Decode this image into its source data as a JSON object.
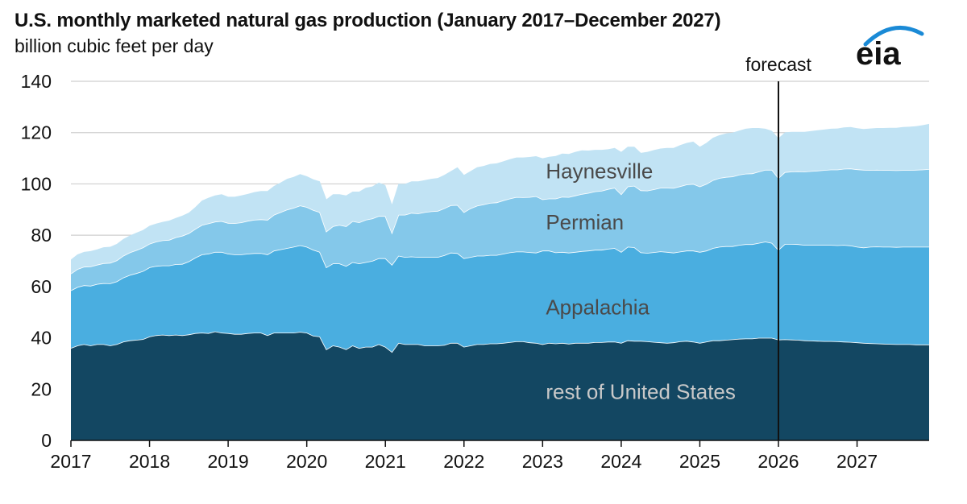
{
  "title": "U.S. monthly marketed natural gas production (January 2017–December 2027)",
  "subtitle": "billion cubic feet per day",
  "logo_text": "eia",
  "colors": {
    "rest": "#134762",
    "appalachia": "#4aaee0",
    "permian": "#84c8ea",
    "haynesville": "#c1e3f4",
    "logo": "#1a8ad6"
  },
  "chart_data": {
    "type": "area",
    "stacked": true,
    "ylabel": "billion cubic feet per day",
    "ylim": [
      0,
      140
    ],
    "yticks": [
      0,
      20,
      40,
      60,
      80,
      100,
      120,
      140
    ],
    "xlim": [
      "2017-01",
      "2027-12"
    ],
    "xticks": [
      "2017",
      "2018",
      "2019",
      "2020",
      "2021",
      "2022",
      "2023",
      "2024",
      "2025",
      "2026",
      "2027"
    ],
    "grid": "horizontal",
    "forecast_start": "2026-01",
    "forecast_label": "forecast",
    "x": [
      "2017-01",
      "2017-02",
      "2017-03",
      "2017-04",
      "2017-05",
      "2017-06",
      "2017-07",
      "2017-08",
      "2017-09",
      "2017-10",
      "2017-11",
      "2017-12",
      "2018-01",
      "2018-02",
      "2018-03",
      "2018-04",
      "2018-05",
      "2018-06",
      "2018-07",
      "2018-08",
      "2018-09",
      "2018-10",
      "2018-11",
      "2018-12",
      "2019-01",
      "2019-02",
      "2019-03",
      "2019-04",
      "2019-05",
      "2019-06",
      "2019-07",
      "2019-08",
      "2019-09",
      "2019-10",
      "2019-11",
      "2019-12",
      "2020-01",
      "2020-02",
      "2020-03",
      "2020-04",
      "2020-05",
      "2020-06",
      "2020-07",
      "2020-08",
      "2020-09",
      "2020-10",
      "2020-11",
      "2020-12",
      "2021-01",
      "2021-02",
      "2021-03",
      "2021-04",
      "2021-05",
      "2021-06",
      "2021-07",
      "2021-08",
      "2021-09",
      "2021-10",
      "2021-11",
      "2021-12",
      "2022-01",
      "2022-02",
      "2022-03",
      "2022-04",
      "2022-05",
      "2022-06",
      "2022-07",
      "2022-08",
      "2022-09",
      "2022-10",
      "2022-11",
      "2022-12",
      "2023-01",
      "2023-02",
      "2023-03",
      "2023-04",
      "2023-05",
      "2023-06",
      "2023-07",
      "2023-08",
      "2023-09",
      "2023-10",
      "2023-11",
      "2023-12",
      "2024-01",
      "2024-02",
      "2024-03",
      "2024-04",
      "2024-05",
      "2024-06",
      "2024-07",
      "2024-08",
      "2024-09",
      "2024-10",
      "2024-11",
      "2024-12",
      "2025-01",
      "2025-02",
      "2025-03",
      "2025-04",
      "2025-05",
      "2025-06",
      "2025-07",
      "2025-08",
      "2025-09",
      "2025-10",
      "2025-11",
      "2025-12",
      "2026-01",
      "2026-02",
      "2026-03",
      "2026-04",
      "2026-05",
      "2026-06",
      "2026-07",
      "2026-08",
      "2026-09",
      "2026-10",
      "2026-11",
      "2026-12",
      "2027-01",
      "2027-02",
      "2027-03",
      "2027-04",
      "2027-05",
      "2027-06",
      "2027-07",
      "2027-08",
      "2027-09",
      "2027-10",
      "2027-11",
      "2027-12"
    ],
    "series": [
      {
        "name": "rest of United States",
        "key": "rest",
        "values": [
          36.0,
          37.0,
          37.5,
          37.0,
          37.5,
          37.5,
          37.0,
          37.5,
          38.5,
          39.0,
          39.2,
          39.5,
          40.5,
          41.0,
          41.2,
          41.0,
          41.2,
          41.0,
          41.3,
          41.8,
          42.0,
          41.8,
          42.5,
          42.0,
          41.8,
          41.5,
          41.5,
          41.8,
          42.0,
          42.0,
          41.0,
          42.0,
          42.0,
          42.0,
          42.0,
          42.3,
          42.0,
          40.8,
          40.5,
          35.5,
          37.0,
          36.5,
          35.5,
          37.0,
          36.0,
          36.5,
          36.5,
          37.5,
          36.5,
          34.5,
          38.0,
          37.5,
          37.5,
          37.5,
          37.0,
          37.0,
          37.0,
          37.2,
          38.0,
          38.0,
          36.5,
          37.0,
          37.5,
          37.5,
          37.8,
          37.8,
          38.0,
          38.3,
          38.6,
          38.6,
          38.2,
          38.0,
          37.5,
          38.0,
          37.8,
          38.0,
          37.7,
          38.0,
          38.0,
          38.0,
          38.3,
          38.3,
          38.5,
          38.5,
          38.0,
          39.0,
          38.8,
          38.8,
          38.6,
          38.4,
          38.2,
          38.0,
          38.2,
          38.6,
          38.8,
          38.5,
          38.0,
          38.5,
          39.0,
          39.0,
          39.2,
          39.4,
          39.6,
          39.7,
          39.7,
          40.0,
          40.0,
          40.0,
          39.3,
          39.4,
          39.3,
          39.2,
          39.0,
          38.9,
          38.8,
          38.7,
          38.7,
          38.6,
          38.5,
          38.4,
          38.2,
          38.0,
          37.9,
          37.8,
          37.7,
          37.6,
          37.5,
          37.5,
          37.5,
          37.4,
          37.4,
          37.4
        ]
      },
      {
        "name": "Appalachia",
        "key": "appalachia",
        "values": [
          22.5,
          22.8,
          23.0,
          23.3,
          23.5,
          23.8,
          24.2,
          24.5,
          25.0,
          25.5,
          26.0,
          26.5,
          27.0,
          27.0,
          27.0,
          27.2,
          27.5,
          27.8,
          28.5,
          29.5,
          30.5,
          31.0,
          31.0,
          31.5,
          31.0,
          31.0,
          31.0,
          31.0,
          31.0,
          31.0,
          31.5,
          32.0,
          32.5,
          33.0,
          33.5,
          33.8,
          33.5,
          33.5,
          33.0,
          32.0,
          32.0,
          32.5,
          32.5,
          32.5,
          33.0,
          33.0,
          33.5,
          33.5,
          34.5,
          34.0,
          34.0,
          34.0,
          34.2,
          34.0,
          34.5,
          34.5,
          34.5,
          35.0,
          35.2,
          35.0,
          34.5,
          34.5,
          34.5,
          34.5,
          34.5,
          34.5,
          34.8,
          35.0,
          35.0,
          35.0,
          35.2,
          35.2,
          36.5,
          36.0,
          35.5,
          35.5,
          35.5,
          35.5,
          35.8,
          36.0,
          36.0,
          36.0,
          36.2,
          36.5,
          35.5,
          36.5,
          36.5,
          34.5,
          34.5,
          35.0,
          35.5,
          35.5,
          35.0,
          35.0,
          35.2,
          35.5,
          35.5,
          35.5,
          36.0,
          36.5,
          36.5,
          36.3,
          36.6,
          36.8,
          36.8,
          37.0,
          37.5,
          37.0,
          35.0,
          37.2,
          37.3,
          37.3,
          37.2,
          37.3,
          37.4,
          37.5,
          37.5,
          37.5,
          37.7,
          37.6,
          37.3,
          37.2,
          37.6,
          37.8,
          37.8,
          37.9,
          37.9,
          38.0,
          38.0,
          38.1,
          38.1,
          38.1
        ]
      },
      {
        "name": "Permian",
        "key": "permian",
        "values": [
          6.5,
          7.0,
          7.2,
          7.5,
          7.5,
          7.8,
          8.0,
          8.2,
          8.5,
          8.8,
          9.0,
          9.2,
          9.2,
          9.5,
          9.8,
          10.0,
          10.5,
          11.0,
          11.0,
          11.2,
          11.5,
          11.8,
          11.8,
          12.0,
          12.0,
          12.2,
          12.5,
          12.8,
          13.0,
          13.2,
          13.5,
          14.0,
          14.5,
          15.0,
          15.2,
          15.5,
          15.5,
          15.5,
          15.5,
          14.0,
          14.5,
          15.0,
          15.5,
          16.0,
          16.0,
          16.5,
          16.5,
          16.5,
          16.5,
          12.5,
          16.0,
          16.5,
          17.0,
          17.0,
          17.5,
          17.8,
          18.0,
          18.3,
          18.5,
          18.8,
          18.0,
          19.0,
          19.5,
          20.0,
          20.3,
          20.5,
          20.8,
          21.0,
          21.3,
          21.2,
          21.5,
          22.0,
          20.0,
          20.3,
          21.0,
          21.5,
          21.7,
          22.0,
          22.3,
          22.5,
          22.8,
          23.0,
          23.3,
          23.5,
          22.5,
          23.5,
          24.0,
          24.2,
          24.3,
          24.5,
          24.8,
          25.0,
          25.2,
          25.5,
          25.8,
          26.0,
          25.5,
          26.0,
          26.5,
          26.8,
          27.0,
          27.2,
          27.4,
          27.5,
          27.6,
          27.8,
          28.0,
          28.5,
          28.0,
          28.0,
          28.2,
          28.4,
          28.6,
          28.8,
          29.0,
          29.2,
          29.4,
          29.5,
          29.7,
          30.0,
          30.2,
          30.3,
          29.9,
          29.9,
          29.9,
          29.9,
          29.9,
          29.9,
          29.9,
          30.0,
          30.1,
          30.3
        ]
      },
      {
        "name": "Haynesville",
        "key": "haynesville",
        "values": [
          5.5,
          5.7,
          5.8,
          6.0,
          6.0,
          6.2,
          6.3,
          6.4,
          6.5,
          6.6,
          6.8,
          6.8,
          7.0,
          7.0,
          7.2,
          7.5,
          7.5,
          7.8,
          8.0,
          8.5,
          9.5,
          10.0,
          10.2,
          10.5,
          10.2,
          10.3,
          10.5,
          10.5,
          10.8,
          11.0,
          11.2,
          11.2,
          11.5,
          12.0,
          12.0,
          12.2,
          12.0,
          12.0,
          12.0,
          12.5,
          12.5,
          12.0,
          12.0,
          11.5,
          12.0,
          12.5,
          12.5,
          13.0,
          12.0,
          11.0,
          12.0,
          12.0,
          12.3,
          12.5,
          12.5,
          12.7,
          12.8,
          13.0,
          13.3,
          14.7,
          14.5,
          14.5,
          15.0,
          15.0,
          15.2,
          15.2,
          15.2,
          15.3,
          15.4,
          15.5,
          15.6,
          15.6,
          16.0,
          16.3,
          16.6,
          16.8,
          16.8,
          17.0,
          17.0,
          16.5,
          16.2,
          16.0,
          15.5,
          15.5,
          16.5,
          15.5,
          15.2,
          14.6,
          15.1,
          15.3,
          15.3,
          15.5,
          15.6,
          16.0,
          16.2,
          16.5,
          15.5,
          16.0,
          16.5,
          16.7,
          17.0,
          17.1,
          17.2,
          17.5,
          17.7,
          17.0,
          16.0,
          15.2,
          15.5,
          15.5,
          15.5,
          15.4,
          15.5,
          15.6,
          15.7,
          15.8,
          15.9,
          16.0,
          16.1,
          16.2,
          16.0,
          15.9,
          16.2,
          16.3,
          16.4,
          16.5,
          16.6,
          16.8,
          16.9,
          17.0,
          17.3,
          17.6
        ]
      }
    ],
    "annotations": [
      {
        "text": "Haynesville",
        "x": "2023-01",
        "y": 105
      },
      {
        "text": "Permian",
        "x": "2023-01",
        "y": 85
      },
      {
        "text": "Appalachia",
        "x": "2023-01",
        "y": 52
      },
      {
        "text": "rest of United States",
        "x": "2023-01",
        "y": 19
      }
    ]
  }
}
